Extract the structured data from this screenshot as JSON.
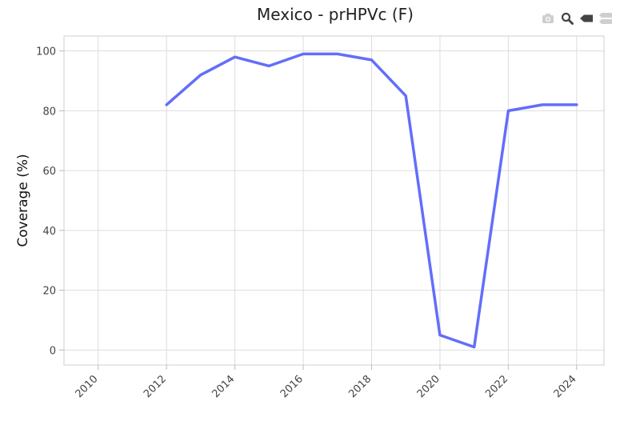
{
  "chart_data": {
    "type": "line",
    "title": "Mexico - prHPVc (F)",
    "xlabel": "",
    "ylabel": "Coverage (%)",
    "xlim": [
      2009,
      2024.8
    ],
    "ylim": [
      -5,
      105
    ],
    "x_ticks": [
      2010,
      2012,
      2014,
      2016,
      2018,
      2020,
      2022,
      2024
    ],
    "y_ticks": [
      0,
      20,
      40,
      60,
      80,
      100
    ],
    "grid": true,
    "series": [
      {
        "color": "#636efa",
        "x": [
          2012,
          2013,
          2014,
          2015,
          2016,
          2017,
          2018,
          2019,
          2020,
          2021,
          2022,
          2023,
          2024
        ],
        "y": [
          82,
          92,
          98,
          95,
          99,
          99,
          97,
          85,
          5,
          1,
          80,
          82,
          82
        ]
      }
    ]
  },
  "modebar": {
    "icons": [
      "camera-icon",
      "zoom-icon",
      "hover-closest-icon",
      "hover-compare-icon"
    ]
  }
}
